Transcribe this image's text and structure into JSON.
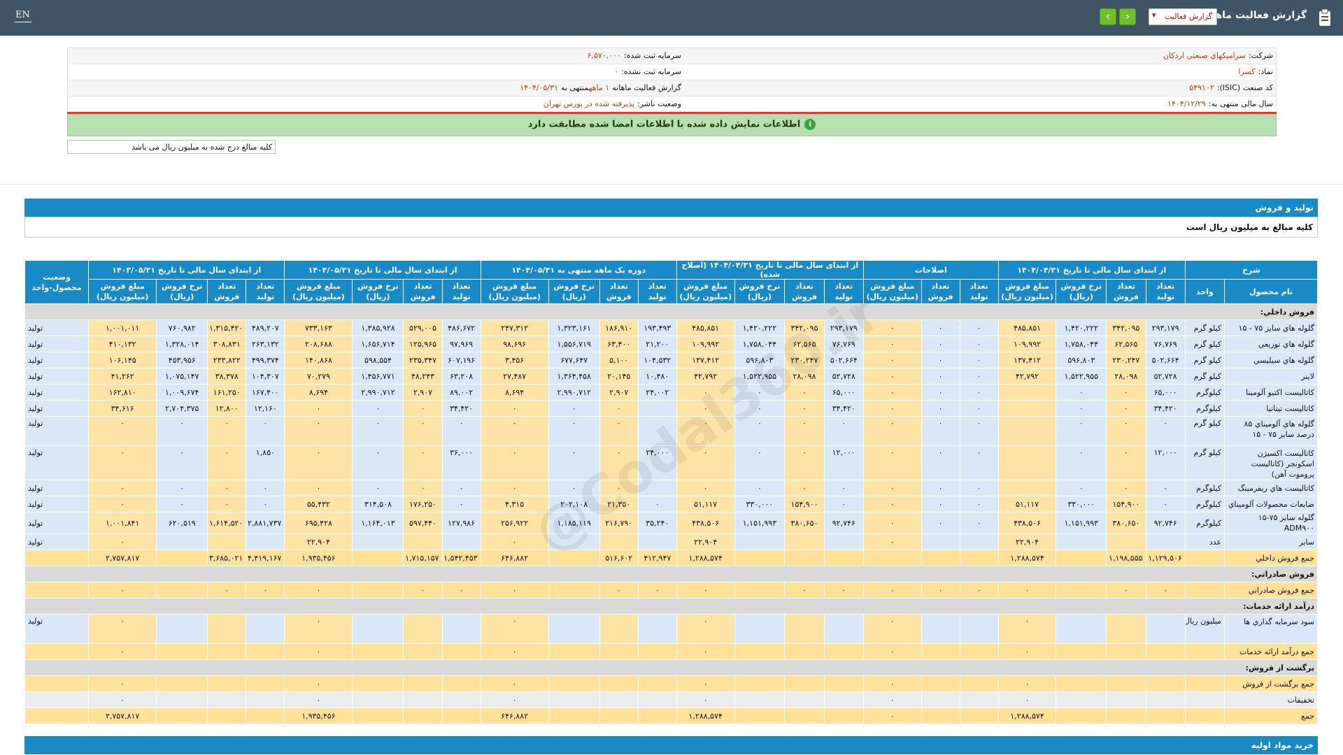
{
  "header": {
    "lang": "EN",
    "title": "گزارش فعالیت ماهانه",
    "select_value": "گزارش فعالیت"
  },
  "info": {
    "company_label": "شرکت:",
    "company_value": "سرامیکهاي صنعتي اردکان",
    "symbol_label": "نماد:",
    "symbol_value": "کسرا",
    "isic_label": "کد صنعت (ISIC):",
    "isic_value": "۵۴۹۱۰۲",
    "fy_label": "سال مالی منتهی به:",
    "fy_value": "۱۴۰۴/۱۲/۲۹",
    "cap_label": "سرمایه ثبت شده:",
    "cap_value": "۶,۵۷۰,۰۰۰",
    "uncap_label": "سرمایه ثبت نشده:",
    "uncap_value": "۰",
    "report_label": "گزارش فعالیت ماهانه",
    "report_value": "۱ ماهه",
    "report_suffix": "منتهی به",
    "report_date": "۱۴۰۴/۰۵/۳۱",
    "status_label": "وضعیت ناشر:",
    "status_value": "پذیرفته شده در بورس تهران"
  },
  "match_notice": "اطلاعات نمایش داده شده با اطلاعات امضا شده مطابقت دارد",
  "units_note": "کلیه مبالغ درج شده به میلیون ریال می باشد",
  "section_title": "تولید و فروش",
  "section_sub": "کلیه مبالغ به میلیون ریال است",
  "next_section": "خرید مواد اولیه",
  "watermark": "@Codal360.ir",
  "table": {
    "groups": [
      "شرح",
      "از ابتدای سال مالی تا تاریخ ۱۴۰۴/۰۴/۳۱",
      "اصلاحات",
      "از ابتدای سال مالی تا تاریخ ۱۴۰۴/۰۴/۳۱ (اصلاح شده)",
      "دوره یک ماهه منتهی به ۱۴۰۴/۰۵/۳۱",
      "از ابتدای سال مالی تا تاریخ ۱۴۰۴/۰۵/۳۱",
      "از ابتدای سال مالی تا تاریخ ۱۴۰۳/۰۵/۳۱",
      "وضعیت محصول-واحد"
    ],
    "sub": [
      "نام محصول",
      "واحد",
      "تعداد تولید",
      "تعداد فروش",
      "نرخ فروش (ریال)",
      "مبلغ فروش (میلیون ریال)",
      "تعداد تولید",
      "تعداد فروش",
      "مبلغ فروش (میلیون ریال)",
      "تعداد تولید",
      "تعداد فروش",
      "نرخ فروش (ریال)",
      "مبلغ فروش (میلیون ریال)",
      "تعداد تولید",
      "تعداد فروش",
      "نرخ فروش (ریال)",
      "مبلغ فروش (میلیون ریال)",
      "تعداد تولید",
      "تعداد فروش",
      "نرخ فروش (ریال)",
      "مبلغ فروش (میلیون ریال)",
      "تعداد تولید",
      "تعداد فروش",
      "نرخ فروش (ریال)",
      "مبلغ فروش (میلیون ریال)"
    ],
    "rows": [
      {
        "type": "sec",
        "label": "فروش داخلي:"
      },
      {
        "type": "row",
        "c": [
          "گلوله هاي سايز ۷۵ - ۱۵",
          "کيلو گرم",
          "۲۹۳,۱۷۹",
          "۳۴۲,۰۹۵",
          "۱,۴۲۰,۲۲۲",
          "۴۸۵,۸۵۱",
          "۰",
          "۰",
          "۰",
          "۲۹۳,۱۷۹",
          "۳۴۲,۰۹۵",
          "۱,۴۲۰,۲۲۲",
          "۴۸۵,۸۵۱",
          "۱۹۳,۴۹۳",
          "۱۸۶,۹۱۰",
          "۱,۳۲۳,۱۶۱",
          "۲۴۷,۳۱۲",
          "۴۸۶,۶۷۲",
          "۵۲۹,۰۰۵",
          "۱,۳۸۵,۹۲۸",
          "۷۳۳,۱۶۳",
          "۴۸۹,۲۰۷",
          "۱,۳۱۵,۴۲۰",
          "۷۶۰,۹۸۲",
          "۱,۰۰۱,۰۱۱",
          "توليد"
        ]
      },
      {
        "type": "row",
        "c": [
          "گلوله هاي توزيعي",
          "کيلو گرم",
          "۷۶,۷۶۹",
          "۶۲,۵۶۵",
          "۱,۷۵۸,۰۴۴",
          "۱۰۹,۹۹۲",
          "۰",
          "۰",
          "۰",
          "۷۶,۷۶۹",
          "۶۲,۵۶۵",
          "۱,۷۵۸,۰۴۴",
          "۱۰۹,۹۹۲",
          "۲۱,۲۰۰",
          "۶۳,۴۰۰",
          "۱,۵۵۶,۷۱۹",
          "۹۸,۶۹۶",
          "۹۷,۹۶۹",
          "۱۲۵,۹۶۵",
          "۱,۶۵۶,۷۱۴",
          "۲۰۸,۶۸۸",
          "۲۶۳,۱۳۲",
          "۳۰۸,۸۳۱",
          "۱,۳۲۸,۰۱۴",
          "۴۱۰,۱۳۲",
          "توليد"
        ]
      },
      {
        "type": "row",
        "c": [
          "گلوله هاي سيليسي",
          "کيلو گرم",
          "۵۰۲,۶۶۴",
          "۲۳۰,۲۴۷",
          "۵۹۶,۸۰۳",
          "۱۳۷,۴۱۲",
          "۰",
          "۰",
          "۰",
          "۵۰۲,۶۶۴",
          "۲۳۰,۲۴۷",
          "۵۹۶,۸۰۳",
          "۱۳۷,۴۱۲",
          "۱۰۴,۵۳۲",
          "۵,۱۰۰",
          "۶۷۷,۶۴۷",
          "۳,۴۵۶",
          "۶۰۷,۱۹۶",
          "۲۳۵,۳۴۷",
          "۵۹۸,۵۵۴",
          "۱۴۰,۸۶۸",
          "۴۹۹,۳۷۴",
          "۲۳۳,۸۲۲",
          "۴۵۳,۹۵۶",
          "۱۰۶,۱۴۵",
          "توليد"
        ]
      },
      {
        "type": "row",
        "c": [
          "لاينر",
          "کيلو گرم",
          "۵۲,۷۲۸",
          "۲۸,۰۹۸",
          "۱,۵۲۲,۹۵۵",
          "۴۲,۷۹۲",
          "۰",
          "۰",
          "۰",
          "۵۲,۷۲۸",
          "۲۸,۰۹۸",
          "۱,۵۲۲,۹۵۵",
          "۴۲,۷۹۲",
          "۱۰,۴۸۰",
          "۲۰,۱۴۵",
          "۱,۳۶۴,۴۵۸",
          "۲۷,۴۸۷",
          "۶۳,۲۰۸",
          "۴۸,۲۴۳",
          "۱,۴۵۶,۷۷۱",
          "۷۰,۲۷۹",
          "۱۰۴,۳۰۷",
          "۳۸,۳۷۸",
          "۱,۰۷۵,۱۴۷",
          "۴۱,۲۶۲",
          "توليد"
        ]
      },
      {
        "type": "row",
        "c": [
          "کاتاليست اکتيو آلومينا",
          "کيلوگرم",
          "۶۵,۰۰۰",
          "۰",
          "۰",
          "",
          "۰",
          "۰",
          "۰",
          "۶۵,۰۰۰",
          "۰",
          "۰",
          "۰",
          "۲۴,۰۰۲",
          "۲,۹۰۷",
          "۲,۹۹۰,۷۱۲",
          "۸,۶۹۴",
          "۸۹,۰۰۲",
          "۲,۹۰۷",
          "۲,۹۹۰,۷۱۲",
          "۸,۶۹۴",
          "۱۶۷,۴۰۰",
          "۱۶۱,۲۵۰",
          "۱,۰۰۹,۶۷۴",
          "۱۶۲,۸۱۰",
          "توليد"
        ]
      },
      {
        "type": "row",
        "c": [
          "کاتاليست تيتانيا",
          "کيلوگرم",
          "۳۴,۴۲۰",
          "۰",
          "۰",
          "",
          "۰",
          "۰",
          "۰",
          "۳۴,۴۲۰",
          "۰",
          "۰",
          "۰",
          "",
          "۰",
          "۰",
          "۰",
          "۳۴,۴۲۰",
          "۰",
          "۰",
          "۰",
          "۱۲,۱۶۰",
          "۱۲,۸۰۰",
          "۲,۷۰۴,۳۷۵",
          "۳۴,۶۱۶",
          "توليد"
        ]
      },
      {
        "type": "tall",
        "c": [
          "گلوله هاي آلوميناي ۸۵ درصد سايز ۷۵ - ۱۵",
          "کيلو گرم",
          "۰",
          "۰",
          "۰",
          "",
          "۰",
          "۰",
          "۰",
          "۰",
          "۰",
          "۰",
          "۰",
          "",
          "۰",
          "۰",
          "۰",
          "۰",
          "۰",
          "۰",
          "۰",
          "۰",
          "۰",
          "۰",
          "۰",
          "توليد"
        ]
      },
      {
        "type": "tall",
        "c": [
          "کاتاليست اکسيژن اسکونجر (کاتاليست پروموت آهن)",
          "کيلو گرم",
          "۱۲,۰۰۰",
          "۰",
          "۰",
          "",
          "۰",
          "۰",
          "۰",
          "۱۲,۰۰۰",
          "۰",
          "۰",
          "۰",
          "۲۴,۰۰۰",
          "۰",
          "۰",
          "۰",
          "۳۶,۰۰۰",
          "۰",
          "۰",
          "۰",
          "۱,۸۵۰",
          "۰",
          "۰",
          "۰",
          "توليد"
        ]
      },
      {
        "type": "row",
        "c": [
          "کاتاليست هاي ريفرمينگ",
          "کيلوگرم",
          "۰",
          "۰",
          "۰",
          "",
          "۰",
          "۰",
          "۰",
          "۰",
          "۰",
          "۰",
          "۰",
          "",
          "۰",
          "۰",
          "۰",
          "۰",
          "۰",
          "۰",
          "۰",
          "۰",
          "۰",
          "۰",
          "۰",
          "توليد"
        ]
      },
      {
        "type": "row",
        "c": [
          "ضايعات محصولات آلوميناي",
          "کيلوگرم",
          "۰",
          "۱۵۴,۹۰۰",
          "۳۳۰,۰۰۰",
          "۵۱,۱۱۷",
          "۰",
          "۰",
          "۰",
          "۰",
          "۱۵۴,۹۰۰",
          "۳۳۰,۰۰۰",
          "۵۱,۱۱۷",
          "۰",
          "۲۱,۳۵۰",
          "۲۰۲,۱۰۸",
          "۴,۳۱۵",
          "۰",
          "۱۷۶,۲۵۰",
          "۳۱۴,۵۰۸",
          "۵۵,۴۳۲",
          "۰",
          "۰",
          "۰",
          "۰",
          "توليد"
        ]
      },
      {
        "type": "row",
        "c": [
          "گلوله سايز ۷۵-۱۵ ADM۹۰۰",
          "کيلوگرم",
          "۹۲,۷۴۶",
          "۳۸۰,۶۵۰",
          "۱,۱۵۱,۹۹۳",
          "۴۳۸,۵۰۶",
          "۰",
          "۰",
          "۰",
          "۹۲,۷۴۶",
          "۳۸۰,۶۵۰",
          "۱,۱۵۱,۹۹۳",
          "۴۳۸,۵۰۶",
          "۳۵,۲۴۰",
          "۲۱۶,۷۹۰",
          "۱,۱۸۵,۱۱۹",
          "۲۵۶,۹۲۲",
          "۱۲۷,۹۸۶",
          "۵۹۷,۴۴۰",
          "۱,۱۶۴,۰۱۳",
          "۶۹۵,۴۲۸",
          "۲,۸۸۱,۷۳۷",
          "۱,۶۱۴,۵۲۰",
          "۶۲۰,۵۱۹",
          "۱,۰۰۱,۸۴۱",
          "توليد"
        ]
      },
      {
        "type": "row",
        "c": [
          "ساير",
          "عدد",
          "",
          "",
          "",
          "۲۲,۹۰۴",
          "",
          "",
          "۰",
          "",
          "",
          "",
          "۲۲,۹۰۴",
          "",
          "",
          "",
          "۰",
          "",
          "",
          "",
          "۲۲,۹۰۴",
          "",
          "",
          "",
          "۰",
          "توليد"
        ]
      },
      {
        "type": "sum",
        "c": [
          "جمع فروش داخلي",
          "",
          "۱,۱۲۹,۵۰۶",
          "۱,۱۹۸,۵۵۵",
          "",
          "۱,۲۸۸,۵۷۴",
          "",
          "",
          "",
          "",
          "",
          "",
          "۱,۲۸۸,۵۷۴",
          "۴۱۲,۹۴۷",
          "۵۱۶,۶۰۲",
          "",
          "۶۴۶,۸۸۲",
          "۱,۵۴۲,۴۵۳",
          "۱,۷۱۵,۱۵۷",
          "",
          "۱,۹۳۵,۴۵۶",
          "۴,۴۱۹,۱۶۷",
          "۳,۶۸۵,۰۲۱",
          "",
          "۲,۷۵۷,۸۱۷",
          ""
        ]
      },
      {
        "type": "sec",
        "label": "فروش صادراتي:"
      },
      {
        "type": "sum",
        "c": [
          "جمع فروش صادراتي",
          "",
          "۰",
          "۰",
          "",
          "۰",
          "۰",
          "۰",
          "۰",
          "۰",
          "۰",
          "",
          "۰",
          "۰",
          "۰",
          "",
          "۰",
          "۰",
          "۰",
          "",
          "۰",
          "۰",
          "۰",
          "",
          "۰",
          ""
        ]
      },
      {
        "type": "sec",
        "label": "درآمد ارائه خدمات:"
      },
      {
        "type": "tall",
        "c": [
          "سود سرمايه گذاري ها",
          "ميليون ريال",
          "",
          "",
          "",
          "۰",
          "",
          "",
          "۰",
          "",
          "",
          "",
          "۰",
          "",
          "",
          "",
          "۰",
          "",
          "",
          "",
          "۰",
          "",
          "",
          "",
          "۰",
          "توليد"
        ]
      },
      {
        "type": "sum",
        "c": [
          "جمع درآمد ارائه خدمات",
          "",
          "",
          "",
          "",
          "۰",
          "",
          "",
          "۰",
          "",
          "",
          "",
          "۰",
          "",
          "",
          "",
          "۰",
          "",
          "",
          "",
          "۰",
          "",
          "",
          "",
          "۰",
          ""
        ]
      },
      {
        "type": "sec",
        "label": "برگشت از فروش:"
      },
      {
        "type": "sum",
        "c": [
          "جمع برگشت از فروش",
          "",
          "",
          "",
          "",
          "۰",
          "",
          "",
          "۰",
          "",
          "",
          "",
          "۰",
          "",
          "",
          "",
          "۰",
          "",
          "",
          "",
          "۰",
          "",
          "",
          "",
          "۰",
          ""
        ]
      },
      {
        "type": "disc",
        "c": [
          "تخفيفات",
          "",
          "",
          "",
          "",
          "۰",
          "",
          "",
          "۰",
          "",
          "",
          "",
          "۰",
          "",
          "",
          "",
          "۰",
          "",
          "",
          "",
          "۰",
          "",
          "",
          "",
          "۰",
          ""
        ]
      },
      {
        "type": "sum",
        "c": [
          "جمع",
          "",
          "",
          "",
          "",
          "۱,۲۸۸,۵۷۴",
          "",
          "",
          "۰",
          "",
          "",
          "",
          "۱,۲۸۸,۵۷۴",
          "",
          "",
          "",
          "۶۴۶,۸۸۲",
          "",
          "",
          "",
          "۱,۹۳۵,۴۵۶",
          "",
          "",
          "",
          "۲,۷۵۷,۸۱۷",
          ""
        ]
      }
    ]
  }
}
